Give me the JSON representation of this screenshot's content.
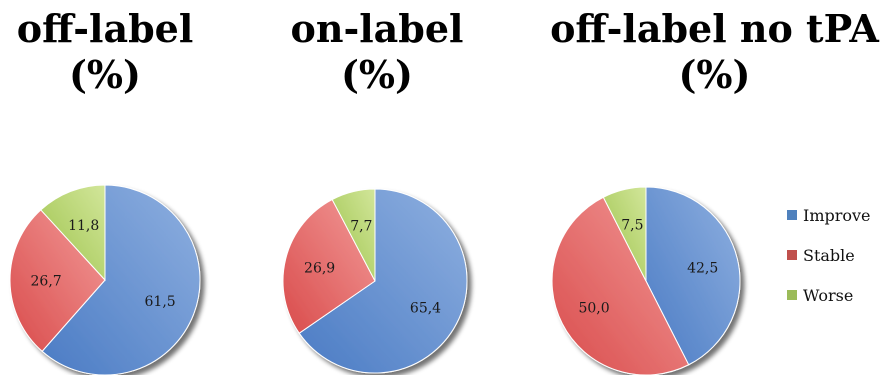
{
  "chart_data": [
    {
      "type": "pie",
      "title": [
        "off-label",
        "(%)"
      ],
      "categories": [
        "Improve",
        "Stable",
        "Worse"
      ],
      "values": [
        61.5,
        26.7,
        11.8
      ],
      "labels": [
        "61,5",
        "26,7",
        "11,8"
      ]
    },
    {
      "type": "pie",
      "title": [
        "on-label",
        "(%)"
      ],
      "categories": [
        "Improve",
        "Stable",
        "Worse"
      ],
      "values": [
        65.4,
        26.9,
        7.7
      ],
      "labels": [
        "65,4",
        "26,9",
        "7,7"
      ]
    },
    {
      "type": "pie",
      "title": [
        "off-label no tPA",
        "(%)"
      ],
      "categories": [
        "Improve",
        "Stable",
        "Worse"
      ],
      "values": [
        42.5,
        50.0,
        7.5
      ],
      "labels": [
        "42,5",
        "50,0",
        "7,5"
      ]
    }
  ],
  "legend": {
    "placement": "right",
    "items": [
      {
        "label": "Improve",
        "color": "#4f81bd"
      },
      {
        "label": "Stable",
        "color": "#c0504d"
      },
      {
        "label": "Worse",
        "color": "#9bbb59"
      }
    ]
  },
  "colors": {
    "Improve": [
      "#4a7bc4",
      "#8fb0e0"
    ],
    "Stable": [
      "#d94b4b",
      "#f29a98"
    ],
    "Worse": [
      "#9cc24a",
      "#d2e69a"
    ]
  }
}
